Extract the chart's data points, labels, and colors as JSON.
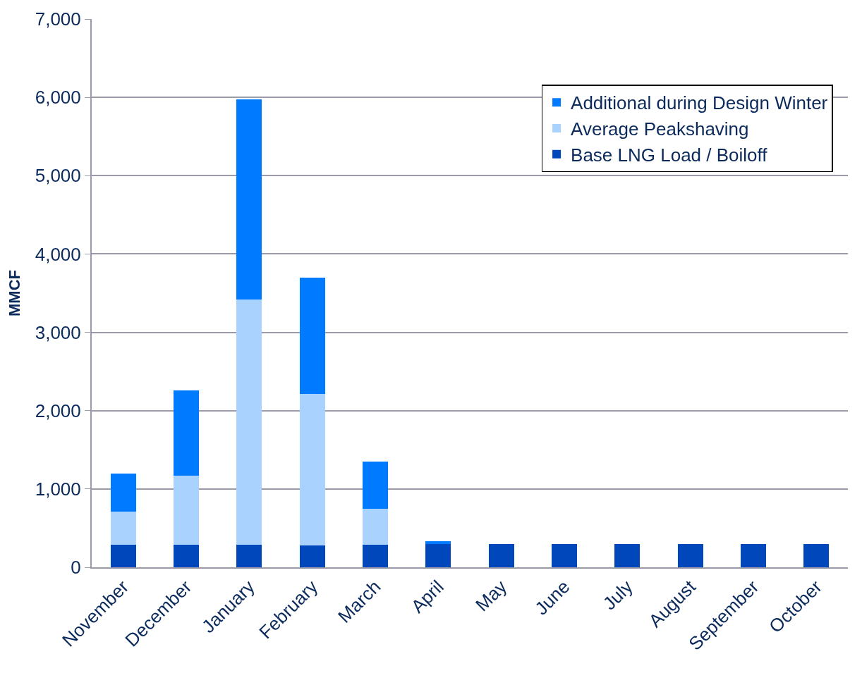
{
  "chart_data": {
    "type": "bar",
    "stacked": true,
    "ylabel": "MMCF",
    "categories": [
      "November",
      "December",
      "January",
      "February",
      "March",
      "April",
      "May",
      "June",
      "July",
      "August",
      "September",
      "October"
    ],
    "series": [
      {
        "name": "Base LNG Load / Boiloff",
        "color": "#0047bb",
        "values": [
          290,
          290,
          290,
          280,
          290,
          300,
          300,
          300,
          300,
          300,
          300,
          300
        ]
      },
      {
        "name": "Average Peakshaving",
        "color": "#aad2ff",
        "values": [
          420,
          880,
          3130,
          1930,
          460,
          0,
          0,
          0,
          0,
          0,
          0,
          0
        ]
      },
      {
        "name": "Additional during Design Winter",
        "color": "#007aff",
        "values": [
          490,
          1090,
          2550,
          1490,
          600,
          30,
          0,
          0,
          0,
          0,
          0,
          0
        ]
      }
    ],
    "ylim": [
      0,
      7000
    ],
    "yticks": [
      0,
      {
        "value": 1000,
        "label": "1,000"
      },
      {
        "value": 2000,
        "label": "2,000"
      },
      {
        "value": 3000,
        "label": "3,000"
      },
      {
        "value": 4000,
        "label": "4,000"
      },
      {
        "value": 5000,
        "label": "5,000"
      },
      {
        "value": 6000,
        "label": "6,000"
      },
      {
        "value": 7000,
        "label": "7,000"
      }
    ],
    "grid": "y",
    "legend": "top right"
  }
}
